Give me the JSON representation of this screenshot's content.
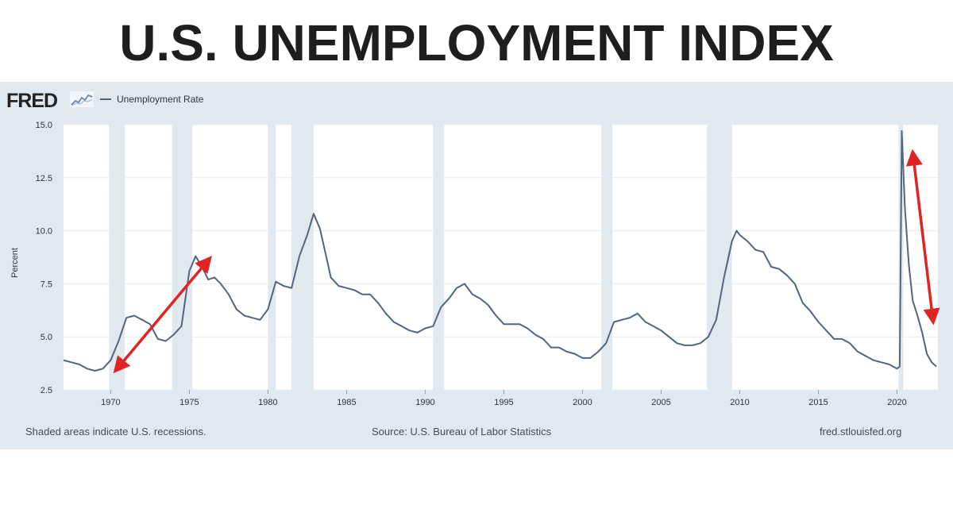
{
  "headline": "U.S. UNEMPLOYMENT INDEX",
  "brand": {
    "logo": "FRED",
    "logo_icon": "fred-sparkline-icon"
  },
  "footer": {
    "left": "Shaded areas indicate U.S. recessions.",
    "center": "Source: U.S. Bureau of Labor Statistics",
    "right": "fred.stlouisfed.org"
  },
  "colors": {
    "line": "#52657d",
    "recession_shade": "#e1e9f0",
    "panel": "#e1e9f0",
    "arrow": "#e02424",
    "grid": "#e8ecf0"
  },
  "chart_data": {
    "type": "line",
    "title": "",
    "xlabel": "",
    "ylabel": "Percent",
    "xlim": [
      1967.0,
      2022.6
    ],
    "ylim": [
      2.5,
      15.0
    ],
    "yticks": [
      "2.5",
      "5.0",
      "7.5",
      "10.0",
      "12.5",
      "15.0"
    ],
    "xticks": [
      "1970",
      "1975",
      "1980",
      "1985",
      "1990",
      "1995",
      "2000",
      "2005",
      "2010",
      "2015",
      "2020"
    ],
    "grid": true,
    "legend": "top-left",
    "series": [
      {
        "name": "Unemployment Rate",
        "x": [
          1967.0,
          1967.5,
          1968.0,
          1968.5,
          1969.0,
          1969.5,
          1970.0,
          1970.5,
          1971.0,
          1971.5,
          1972.0,
          1972.5,
          1973.0,
          1973.5,
          1974.0,
          1974.5,
          1975.0,
          1975.4,
          1975.8,
          1976.2,
          1976.6,
          1977.0,
          1977.5,
          1978.0,
          1978.5,
          1979.0,
          1979.5,
          1980.0,
          1980.5,
          1981.0,
          1981.5,
          1982.0,
          1982.5,
          1982.9,
          1983.3,
          1983.7,
          1984.0,
          1984.5,
          1985.0,
          1985.5,
          1986.0,
          1986.5,
          1987.0,
          1987.5,
          1988.0,
          1988.5,
          1989.0,
          1989.5,
          1990.0,
          1990.5,
          1991.0,
          1991.5,
          1992.0,
          1992.5,
          1993.0,
          1993.5,
          1994.0,
          1994.5,
          1995.0,
          1995.5,
          1996.0,
          1996.5,
          1997.0,
          1997.5,
          1998.0,
          1998.5,
          1999.0,
          1999.5,
          2000.0,
          2000.5,
          2001.0,
          2001.5,
          2002.0,
          2002.5,
          2003.0,
          2003.5,
          2004.0,
          2004.5,
          2005.0,
          2005.5,
          2006.0,
          2006.5,
          2007.0,
          2007.5,
          2008.0,
          2008.5,
          2009.0,
          2009.5,
          2009.8,
          2010.0,
          2010.5,
          2011.0,
          2011.5,
          2012.0,
          2012.5,
          2013.0,
          2013.5,
          2014.0,
          2014.5,
          2015.0,
          2015.5,
          2016.0,
          2016.5,
          2017.0,
          2017.5,
          2018.0,
          2018.5,
          2019.0,
          2019.5,
          2020.0,
          2020.17,
          2020.3,
          2020.5,
          2020.75,
          2021.0,
          2021.3,
          2021.6,
          2021.9,
          2022.2,
          2022.5
        ],
        "values": [
          3.9,
          3.8,
          3.7,
          3.5,
          3.4,
          3.5,
          3.9,
          4.8,
          5.9,
          6.0,
          5.8,
          5.6,
          4.9,
          4.8,
          5.1,
          5.5,
          8.1,
          8.8,
          8.3,
          7.7,
          7.8,
          7.5,
          7.0,
          6.3,
          6.0,
          5.9,
          5.8,
          6.3,
          7.6,
          7.4,
          7.3,
          8.8,
          9.8,
          10.8,
          10.1,
          8.8,
          7.8,
          7.4,
          7.3,
          7.2,
          7.0,
          7.0,
          6.6,
          6.1,
          5.7,
          5.5,
          5.3,
          5.2,
          5.4,
          5.5,
          6.4,
          6.8,
          7.3,
          7.5,
          7.0,
          6.8,
          6.5,
          6.0,
          5.6,
          5.6,
          5.6,
          5.4,
          5.1,
          4.9,
          4.5,
          4.5,
          4.3,
          4.2,
          4.0,
          4.0,
          4.3,
          4.7,
          5.7,
          5.8,
          5.9,
          6.1,
          5.7,
          5.5,
          5.3,
          5.0,
          4.7,
          4.6,
          4.6,
          4.7,
          5.0,
          5.8,
          7.8,
          9.5,
          10.0,
          9.8,
          9.5,
          9.1,
          9.0,
          8.3,
          8.2,
          7.9,
          7.5,
          6.6,
          6.2,
          5.7,
          5.3,
          4.9,
          4.9,
          4.7,
          4.3,
          4.1,
          3.9,
          3.8,
          3.7,
          3.5,
          3.6,
          14.7,
          11.1,
          8.4,
          6.7,
          6.0,
          5.2,
          4.2,
          3.8,
          3.6
        ]
      }
    ],
    "recessions": [
      [
        1969.9,
        1970.9
      ],
      [
        1973.9,
        1975.2
      ],
      [
        1980.0,
        1980.5
      ],
      [
        1981.5,
        1982.9
      ],
      [
        1990.5,
        1991.2
      ],
      [
        2001.2,
        2001.9
      ],
      [
        2007.9,
        2009.5
      ],
      [
        2020.1,
        2020.4
      ]
    ],
    "annotations": [
      {
        "type": "double-arrow",
        "from": [
          1970.3,
          3.4
        ],
        "to": [
          1976.3,
          8.7
        ]
      },
      {
        "type": "double-arrow",
        "from": [
          2021.0,
          13.7
        ],
        "to": [
          2022.3,
          5.7
        ]
      }
    ]
  }
}
